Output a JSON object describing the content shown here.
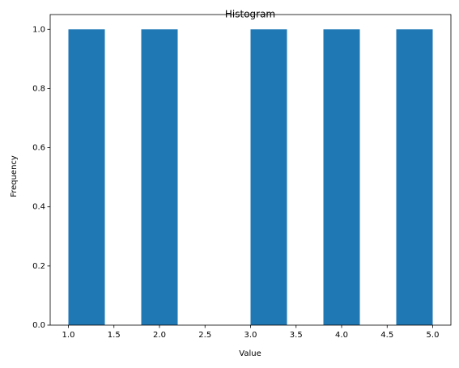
{
  "chart_data": {
    "type": "histogram",
    "title": "Histogram",
    "x_label": "Value",
    "y_label": "Frequency",
    "bins": [
      1.0,
      1.4,
      1.8,
      2.2,
      2.6,
      3.0,
      3.4,
      3.8,
      4.2,
      4.6,
      5.0
    ],
    "values": [
      1,
      0,
      1,
      0,
      0,
      1,
      0,
      1,
      0,
      1
    ],
    "color": "#1f77b4",
    "xlim": [
      0.8,
      5.2
    ],
    "xticks": [
      {
        "value": 1,
        "label": "1.0"
      },
      {
        "value": 1.5,
        "label": "1.5"
      },
      {
        "value": 2,
        "label": "2.0"
      },
      {
        "value": 2.5,
        "label": "2.5"
      },
      {
        "value": 3,
        "label": "3.0"
      },
      {
        "value": 3.5,
        "label": "3.5"
      },
      {
        "value": 4,
        "label": "4.0"
      },
      {
        "value": 4.5,
        "label": "4.5"
      },
      {
        "value": 5,
        "label": "5.0"
      }
    ],
    "ylim": [
      0,
      1.05
    ],
    "yticks": [
      {
        "value": 0,
        "label": "0.0"
      },
      {
        "value": 0.2,
        "label": "0.2"
      },
      {
        "value": 0.4,
        "label": "0.4"
      },
      {
        "value": 0.6,
        "label": "0.6"
      },
      {
        "value": 0.8,
        "label": "0.8"
      },
      {
        "value": 1,
        "label": "1.0"
      }
    ]
  }
}
